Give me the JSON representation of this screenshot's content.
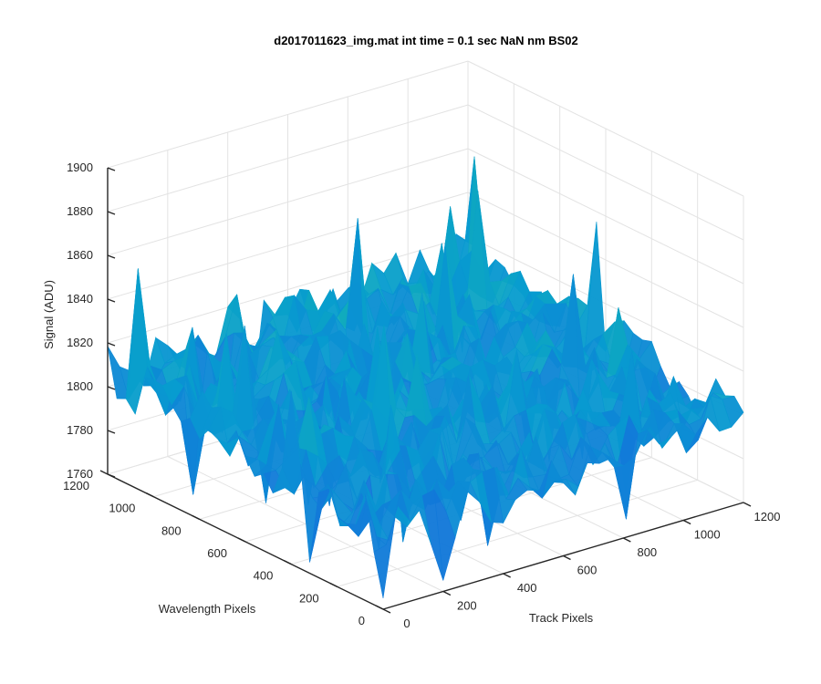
{
  "chart_data": {
    "type": "surface",
    "title": "d2017011623_img.mat int time = 0.1 sec  NaN nm BS02",
    "xlabel": "Track Pixels",
    "ylabel": "Wavelength Pixels",
    "zlabel": "Signal (ADU)",
    "xlim": [
      0,
      1200
    ],
    "ylim": [
      0,
      1200
    ],
    "zlim": [
      1760,
      1900
    ],
    "xticks": [
      "0",
      "200",
      "400",
      "600",
      "800",
      "1000",
      "1200"
    ],
    "yticks": [
      "0",
      "200",
      "400",
      "600",
      "800",
      "1000",
      "1200"
    ],
    "zticks": [
      "1760",
      "1780",
      "1800",
      "1820",
      "1840",
      "1860",
      "1880",
      "1900"
    ],
    "grid": true,
    "colormap": "parula",
    "surface_baseline": 1803,
    "surface_min": 1765,
    "surface_max": 1885,
    "surface_samples": [
      {
        "track": 0,
        "wavelength": 0,
        "signal": 1778
      },
      {
        "track": 0,
        "wavelength": 1200,
        "signal": 1805
      },
      {
        "track": 1200,
        "wavelength": 0,
        "signal": 1790
      },
      {
        "track": 1200,
        "wavelength": 1200,
        "signal": 1818
      },
      {
        "track": 600,
        "wavelength": 600,
        "signal": 1803
      },
      {
        "track": 500,
        "wavelength": 1000,
        "signal": 1852
      },
      {
        "track": 950,
        "wavelength": 900,
        "signal": 1862
      },
      {
        "track": 1060,
        "wavelength": 1000,
        "signal": 1858
      },
      {
        "track": 650,
        "wavelength": 1150,
        "signal": 1872
      }
    ]
  }
}
